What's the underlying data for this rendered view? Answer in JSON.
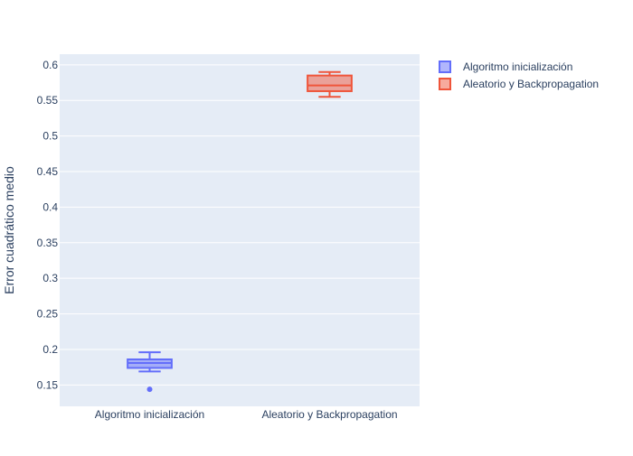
{
  "chart_data": {
    "type": "box",
    "title": "",
    "xlabel": "",
    "ylabel": "Error cuadrático medio",
    "ylim": [
      0.12,
      0.615
    ],
    "yticks": [
      {
        "value": 0.15,
        "label": "0.15"
      },
      {
        "value": 0.2,
        "label": "0.2"
      },
      {
        "value": 0.25,
        "label": "0.25"
      },
      {
        "value": 0.3,
        "label": "0.3"
      },
      {
        "value": 0.35,
        "label": "0.35"
      },
      {
        "value": 0.4,
        "label": "0.4"
      },
      {
        "value": 0.45,
        "label": "0.45"
      },
      {
        "value": 0.5,
        "label": "0.5"
      },
      {
        "value": 0.55,
        "label": "0.55"
      },
      {
        "value": 0.6,
        "label": "0.6"
      }
    ],
    "categories": [
      "Algoritmo inicialización",
      "Aleatorio y Backpropagation"
    ],
    "grid": true,
    "legend_position": "top-right",
    "colors": {
      "plot_bg": "#e5ecf6",
      "grid": "#ffffff",
      "text": "#2a3f5f"
    },
    "series": [
      {
        "name": "Algoritmo inicialización",
        "category": "Algoritmo inicialización",
        "color": "#636efa",
        "fill": "rgba(99,110,250,0.5)",
        "min": 0.169,
        "q1": 0.174,
        "median": 0.181,
        "q3": 0.186,
        "max": 0.196,
        "outliers": [
          0.144
        ]
      },
      {
        "name": "Aleatorio y Backpropagation",
        "category": "Aleatorio y Backpropagation",
        "color": "#ef553b",
        "fill": "rgba(239,85,59,0.5)",
        "min": 0.555,
        "q1": 0.563,
        "median": 0.571,
        "q3": 0.585,
        "max": 0.59,
        "outliers": []
      }
    ]
  }
}
